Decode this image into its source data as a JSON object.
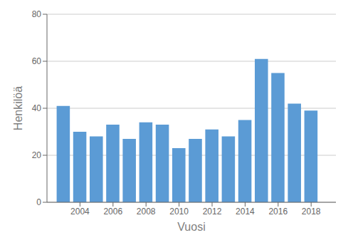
{
  "chart_data": {
    "type": "bar",
    "x": [
      2003,
      2004,
      2005,
      2006,
      2007,
      2008,
      2009,
      2010,
      2011,
      2012,
      2013,
      2014,
      2015,
      2016,
      2017,
      2018
    ],
    "values": [
      41,
      30,
      28,
      33,
      27,
      34,
      33,
      23,
      27,
      31,
      28,
      35,
      61,
      55,
      42,
      39
    ],
    "color": "#5b9bd5",
    "xlabel": "Vuosi",
    "ylabel": "Henkilöä",
    "xlim": [
      2002,
      2019.5
    ],
    "xticks": [
      2004,
      2006,
      2008,
      2010,
      2012,
      2014,
      2016,
      2018
    ],
    "ylim": [
      0,
      80
    ],
    "yticks": [
      0,
      20,
      40,
      60,
      80
    ],
    "grid": true
  }
}
